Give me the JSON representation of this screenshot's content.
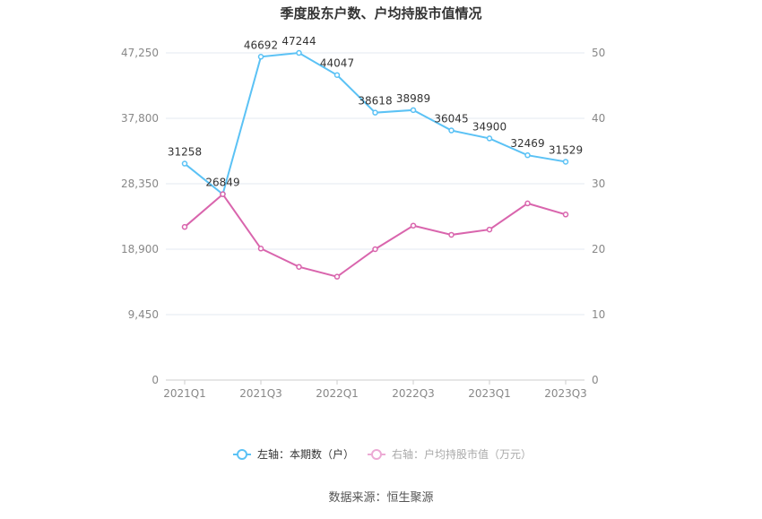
{
  "chart_data": {
    "type": "line",
    "title": "季度股东户数、户均持股市值情况",
    "categories": [
      "2021Q1",
      "2021Q2",
      "2021Q3",
      "2021Q4",
      "2022Q1",
      "2022Q2",
      "2022Q3",
      "2022Q4",
      "2023Q1",
      "2023Q2",
      "2023Q3"
    ],
    "x_tick_labels": [
      "2021Q1",
      "2021Q3",
      "2022Q1",
      "2022Q3",
      "2023Q1",
      "2023Q3"
    ],
    "left_axis": {
      "min": 0,
      "max": 47250,
      "ticks": [
        "0",
        "9,450",
        "18,900",
        "28,350",
        "37,800",
        "47,250"
      ]
    },
    "right_axis": {
      "min": 0,
      "max": 50,
      "ticks": [
        "0",
        "10",
        "20",
        "30",
        "40",
        "50"
      ]
    },
    "grid": true,
    "legend_placement": "bottom",
    "series": [
      {
        "name": "左轴：本期数（户）",
        "axis": "left",
        "color": "#5bc2f5",
        "values": [
          31258,
          26849,
          46692,
          47244,
          44047,
          38618,
          38989,
          36045,
          34900,
          32469,
          31529
        ],
        "labels": [
          "31258",
          "26849",
          "46692",
          "47244",
          "44047",
          "38618",
          "38989",
          "36045",
          "34900",
          "32469",
          "31529"
        ]
      },
      {
        "name": "右轴：户均持股市值（万元）",
        "axis": "right",
        "color": "#d965ad",
        "values": [
          23.4,
          28.4,
          20.1,
          17.3,
          15.8,
          20.0,
          23.6,
          22.2,
          23.0,
          27.0,
          25.3
        ]
      }
    ],
    "source": "数据来源：恒生聚源"
  }
}
